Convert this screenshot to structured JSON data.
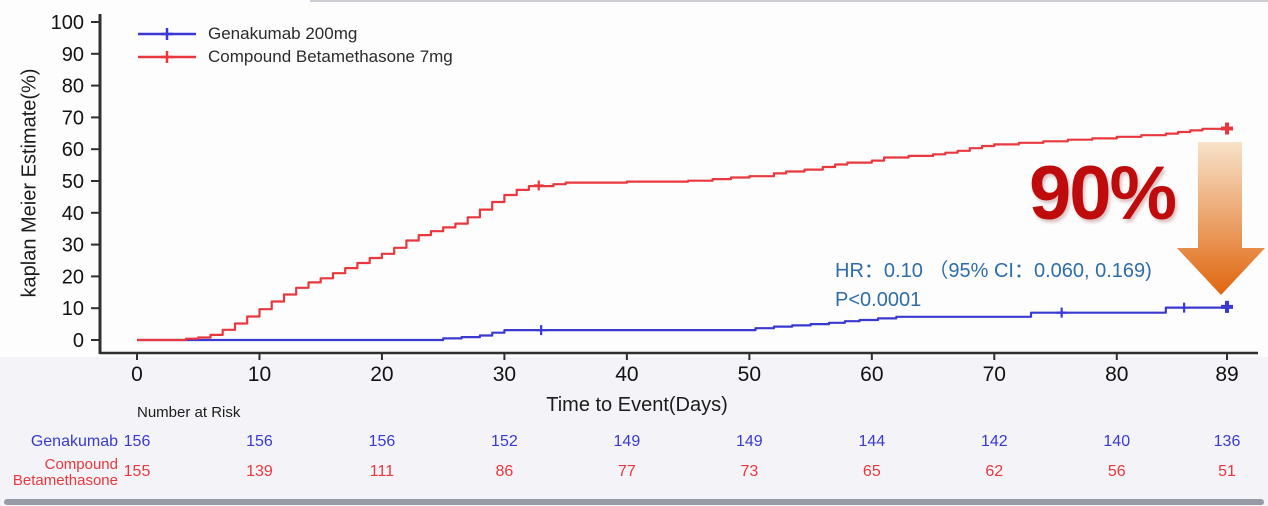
{
  "chart_data": {
    "type": "line",
    "subtype": "kaplan-meier-step",
    "title": "",
    "xlabel": "Time to Event(Days)",
    "ylabel": "kaplan Meier Estimate(%)",
    "xlim": [
      0,
      89
    ],
    "ylim": [
      0,
      100
    ],
    "xticks": [
      0,
      10,
      20,
      30,
      40,
      50,
      60,
      70,
      80,
      89
    ],
    "yticks": [
      0,
      10,
      20,
      30,
      40,
      50,
      60,
      70,
      80,
      90,
      100
    ],
    "grid": false,
    "legend_position": "top-left",
    "series": [
      {
        "name": "Genakumab 200mg",
        "color": "#3a3ad0",
        "points": [
          [
            0,
            0
          ],
          [
            25,
            0.5
          ],
          [
            26.5,
            0.9
          ],
          [
            28,
            1.4
          ],
          [
            29,
            2.3
          ],
          [
            30,
            3.1
          ],
          [
            50.5,
            3.7
          ],
          [
            52,
            4.2
          ],
          [
            53.5,
            4.6
          ],
          [
            55,
            5.0
          ],
          [
            56.5,
            5.4
          ],
          [
            57.8,
            5.9
          ],
          [
            59,
            6.3
          ],
          [
            60.5,
            6.8
          ],
          [
            62,
            7.3
          ],
          [
            73,
            8.6
          ],
          [
            84,
            10.2
          ],
          [
            89,
            10.4
          ]
        ],
        "censor_marks": [
          [
            33,
            3.1
          ],
          [
            75.5,
            8.6
          ],
          [
            85.5,
            10.2
          ]
        ],
        "end_marker": [
          89,
          10.4
        ]
      },
      {
        "name": "Compound Betamethasone 7mg",
        "color": "#e8383e",
        "points": [
          [
            0,
            0
          ],
          [
            4,
            0.4
          ],
          [
            5,
            0.8
          ],
          [
            6,
            1.6
          ],
          [
            7,
            3.2
          ],
          [
            8,
            5.2
          ],
          [
            9,
            7.4
          ],
          [
            10,
            9.7
          ],
          [
            11,
            12.1
          ],
          [
            12,
            14.3
          ],
          [
            13,
            16.4
          ],
          [
            14,
            18.1
          ],
          [
            15,
            19.4
          ],
          [
            16,
            21.0
          ],
          [
            17,
            22.6
          ],
          [
            18,
            24.2
          ],
          [
            19,
            25.8
          ],
          [
            20,
            27.1
          ],
          [
            21,
            29.0
          ],
          [
            22,
            31.3
          ],
          [
            23,
            33.0
          ],
          [
            24,
            34.2
          ],
          [
            25,
            35.4
          ],
          [
            26,
            36.6
          ],
          [
            27,
            38.6
          ],
          [
            28,
            41.0
          ],
          [
            29,
            43.4
          ],
          [
            30,
            45.6
          ],
          [
            31,
            47.2
          ],
          [
            32,
            48.4
          ],
          [
            34,
            49.0
          ],
          [
            35,
            49.5
          ],
          [
            40,
            49.8
          ],
          [
            45,
            50.1
          ],
          [
            47,
            50.6
          ],
          [
            48.5,
            51.1
          ],
          [
            50,
            51.5
          ],
          [
            52,
            52.4
          ],
          [
            53,
            53.0
          ],
          [
            54.5,
            53.6
          ],
          [
            56,
            54.4
          ],
          [
            57,
            55.2
          ],
          [
            58,
            55.8
          ],
          [
            60,
            56.4
          ],
          [
            61,
            57.4
          ],
          [
            63,
            57.9
          ],
          [
            65,
            58.4
          ],
          [
            66,
            58.9
          ],
          [
            67,
            59.5
          ],
          [
            68,
            60.3
          ],
          [
            69,
            61.0
          ],
          [
            70,
            61.5
          ],
          [
            72,
            62.0
          ],
          [
            74,
            62.5
          ],
          [
            76,
            63.0
          ],
          [
            78,
            63.4
          ],
          [
            80,
            63.9
          ],
          [
            82,
            64.4
          ],
          [
            84,
            64.9
          ],
          [
            85,
            65.4
          ],
          [
            86,
            65.9
          ],
          [
            87,
            66.4
          ],
          [
            89,
            66.5
          ]
        ],
        "censor_marks": [
          [
            32.8,
            48.6
          ]
        ],
        "end_marker": [
          89,
          66.5
        ]
      }
    ]
  },
  "annotations": {
    "hr_text": "HR：0.10 （95% CI：0.060, 0.169)",
    "p_text": "P<0.0001",
    "note_color": "#2e6da8",
    "effect_text": "90%",
    "effect_color": "#bf0b0b",
    "arrow_top_color": "#f8e2ca",
    "arrow_bottom_color": "#e0660e"
  },
  "risk_table": {
    "header": "Number at Risk",
    "timepoints": [
      0,
      10,
      20,
      30,
      40,
      50,
      60,
      70,
      80,
      89
    ],
    "rows": [
      {
        "label_lines": [
          "Genakumab"
        ],
        "color": "#3a3ad0",
        "values": [
          "156",
          "156",
          "156",
          "152",
          "149",
          "149",
          "144",
          "142",
          "140",
          "136"
        ]
      },
      {
        "label_lines": [
          "Compound",
          "Betamethasone"
        ],
        "color": "#e8383e",
        "values": [
          "155",
          "139",
          "111",
          "86",
          "77",
          "73",
          "65",
          "62",
          "56",
          "51"
        ]
      }
    ]
  },
  "axis_color": "#2f2f2f"
}
